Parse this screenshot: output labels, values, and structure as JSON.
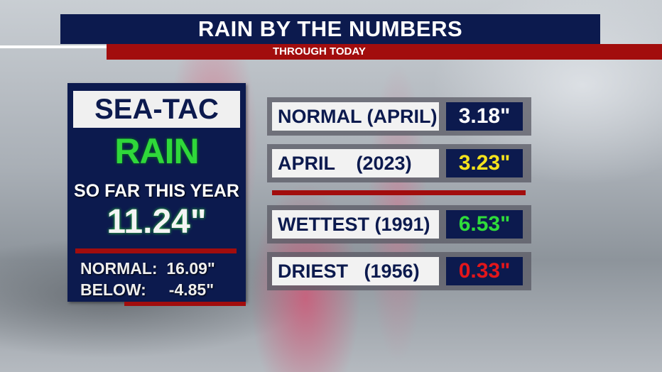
{
  "header": {
    "title": "RAIN BY THE NUMBERS",
    "subtitle": "THROUGH TODAY"
  },
  "panel": {
    "station": "SEA-TAC",
    "heading": "RAIN",
    "caption": "SO FAR THIS YEAR",
    "total": "11.24\"",
    "normal_label": "NORMAL:",
    "normal_value": "16.09\"",
    "below_label": "BELOW:",
    "below_value": "-4.85\""
  },
  "rows": [
    {
      "label": "NORMAL (APRIL)",
      "value": "3.18\"",
      "color": "#ffffff"
    },
    {
      "label": "APRIL    (2023)",
      "value": "3.23\"",
      "color": "#f4e21c"
    },
    {
      "label": "WETTEST (1991)",
      "value": "6.53\"",
      "color": "#2fdc3a"
    },
    {
      "label": "DRIEST   (1956)",
      "value": "0.33\"",
      "color": "#e3161b"
    }
  ]
}
